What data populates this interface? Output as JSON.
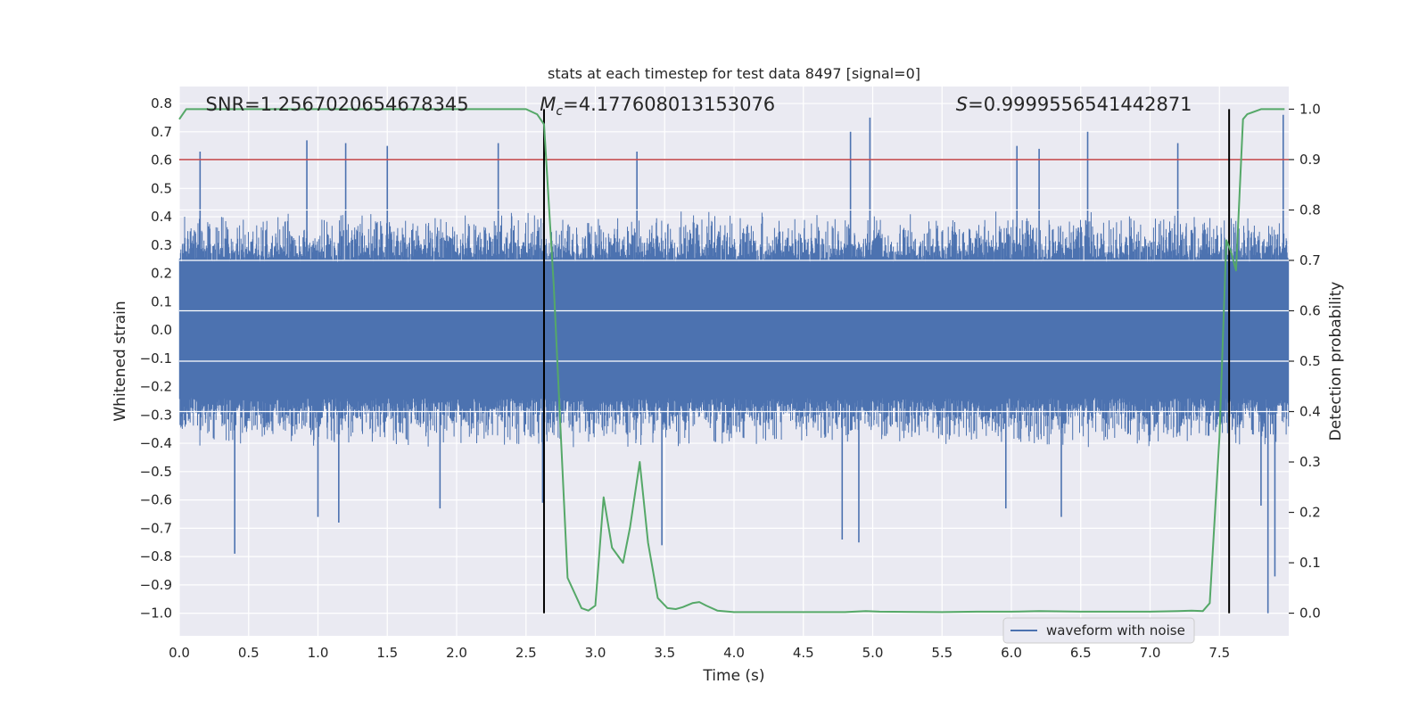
{
  "chart_data": {
    "type": "line",
    "title": "stats at each timestep for test data 8497 [signal=0]",
    "xlabel": "Time (s)",
    "ylabel": "Whitened strain",
    "y2label": "Detection probability",
    "xlim": [
      0.0,
      8.0
    ],
    "ylim": [
      -1.08,
      0.86
    ],
    "y2lim": [
      -0.045,
      1.045
    ],
    "xticks": [
      "0.0",
      "0.5",
      "1.0",
      "1.5",
      "2.0",
      "2.5",
      "3.0",
      "3.5",
      "4.0",
      "4.5",
      "5.0",
      "5.5",
      "6.0",
      "6.5",
      "7.0",
      "7.5"
    ],
    "yticks": [
      "0.8",
      "0.7",
      "0.6",
      "0.5",
      "0.4",
      "0.3",
      "0.2",
      "0.1",
      "0.0",
      "-0.1",
      "-0.2",
      "-0.3",
      "-0.4",
      "-0.5",
      "-0.6",
      "-0.7",
      "-0.8",
      "-0.9",
      "-1.0"
    ],
    "y2ticks": [
      "1.0",
      "0.9",
      "0.8",
      "0.7",
      "0.6",
      "0.5",
      "0.4",
      "0.3",
      "0.2",
      "0.1",
      "0.0"
    ],
    "grid": true,
    "legend_placement": "lower-right",
    "annotations": [
      {
        "text": "SNR=1.2567020654678345",
        "x": 0.19
      },
      {
        "prefix": "M",
        "sub": "c",
        "text": "=4.177608013153076",
        "x": 2.6
      },
      {
        "prefix": "S",
        "text": "=0.9999556541442871",
        "x": 5.6
      }
    ],
    "threshold": {
      "y2": 0.9,
      "color": "#c44e52"
    },
    "vertical_markers": [
      2.63,
      7.57
    ],
    "waveform": {
      "name": "waveform with noise",
      "color": "#4c72b0",
      "envelope": 0.24,
      "baseline_peak": 0.42,
      "spikes": [
        {
          "t": 0.15,
          "v": 0.63
        },
        {
          "t": 0.4,
          "v": -0.79
        },
        {
          "t": 0.92,
          "v": 0.67
        },
        {
          "t": 1.0,
          "v": -0.66
        },
        {
          "t": 1.15,
          "v": -0.68
        },
        {
          "t": 1.2,
          "v": 0.66
        },
        {
          "t": 1.5,
          "v": 0.65
        },
        {
          "t": 1.88,
          "v": -0.63
        },
        {
          "t": 2.3,
          "v": 0.66
        },
        {
          "t": 2.62,
          "v": -0.61
        },
        {
          "t": 3.3,
          "v": 0.63
        },
        {
          "t": 3.48,
          "v": -0.76
        },
        {
          "t": 4.78,
          "v": -0.74
        },
        {
          "t": 4.84,
          "v": 0.7
        },
        {
          "t": 4.9,
          "v": -0.75
        },
        {
          "t": 4.98,
          "v": 0.75
        },
        {
          "t": 5.96,
          "v": -0.63
        },
        {
          "t": 6.04,
          "v": 0.65
        },
        {
          "t": 6.2,
          "v": 0.64
        },
        {
          "t": 6.36,
          "v": -0.66
        },
        {
          "t": 6.55,
          "v": 0.7
        },
        {
          "t": 7.2,
          "v": 0.66
        },
        {
          "t": 7.8,
          "v": -0.62
        },
        {
          "t": 7.85,
          "v": -1.0
        },
        {
          "t": 7.9,
          "v": -0.87
        },
        {
          "t": 7.96,
          "v": 0.76
        }
      ]
    },
    "probability": {
      "color": "#55a868",
      "x": [
        0.0,
        0.05,
        0.1,
        2.5,
        2.58,
        2.63,
        2.7,
        2.8,
        2.9,
        2.95,
        3.0,
        3.06,
        3.12,
        3.2,
        3.25,
        3.32,
        3.38,
        3.45,
        3.52,
        3.58,
        3.63,
        3.7,
        3.75,
        3.8,
        3.88,
        4.0,
        4.5,
        4.8,
        4.95,
        5.05,
        5.5,
        5.75,
        6.0,
        6.2,
        6.5,
        7.0,
        7.2,
        7.3,
        7.38,
        7.43,
        7.5,
        7.55,
        7.58,
        7.62,
        7.67,
        7.7,
        7.8,
        7.97
      ],
      "y": [
        0.98,
        1.0,
        1.0,
        1.0,
        0.99,
        0.97,
        0.65,
        0.07,
        0.01,
        0.005,
        0.015,
        0.23,
        0.13,
        0.1,
        0.17,
        0.3,
        0.14,
        0.03,
        0.01,
        0.008,
        0.012,
        0.02,
        0.022,
        0.015,
        0.005,
        0.002,
        0.002,
        0.002,
        0.004,
        0.003,
        0.002,
        0.003,
        0.003,
        0.004,
        0.003,
        0.003,
        0.004,
        0.005,
        0.004,
        0.02,
        0.35,
        0.74,
        0.72,
        0.68,
        0.98,
        0.99,
        1.0,
        1.0
      ]
    }
  }
}
